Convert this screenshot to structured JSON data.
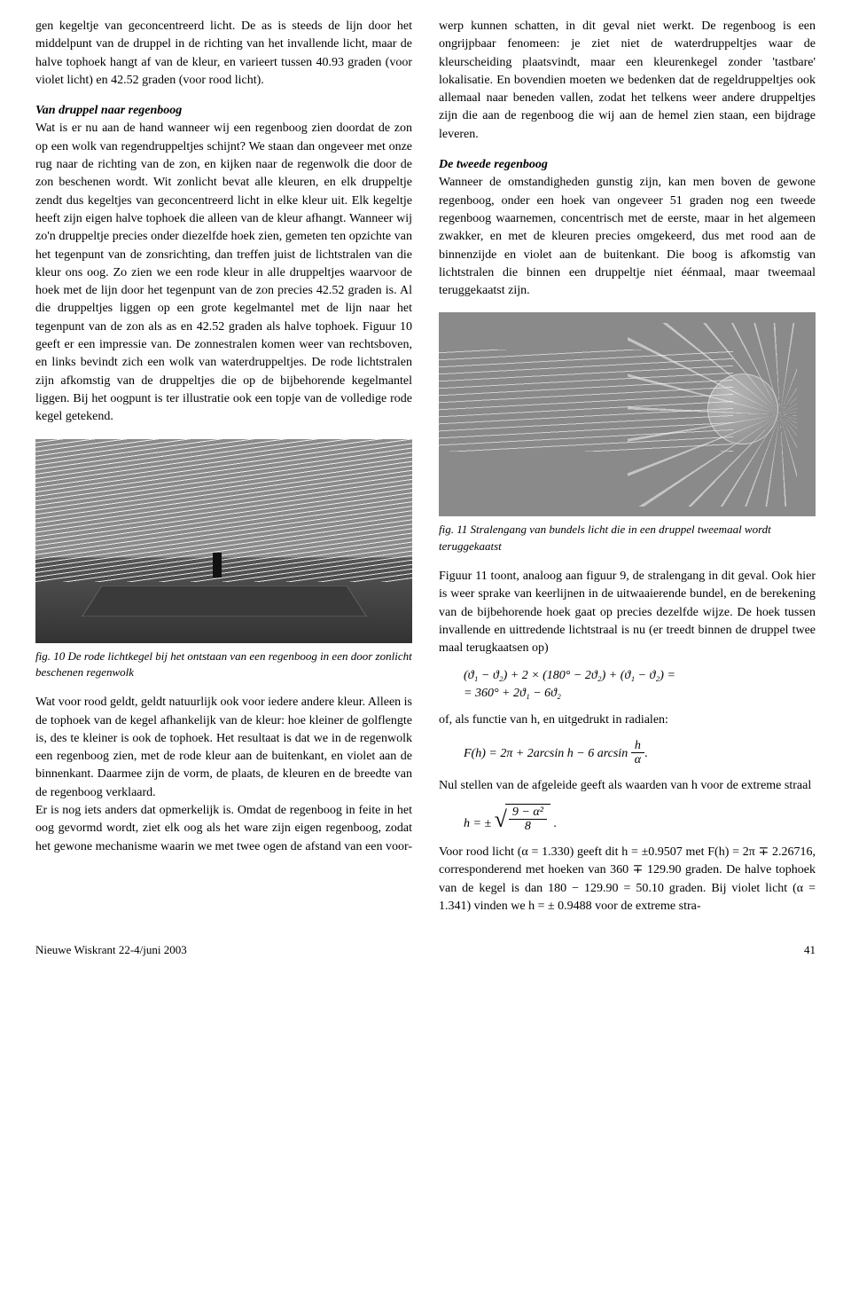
{
  "left": {
    "p1": "gen kegeltje van geconcentreerd licht. De as is steeds de lijn door het middelpunt van de druppel in de richting van het invallende licht, maar de halve tophoek hangt af van de kleur, en varieert tussen 40.93 graden (voor violet licht) en 42.52 graden (voor rood licht).",
    "h1": "Van druppel naar regenboog",
    "p2": "Wat is er nu aan de hand wanneer wij een regenboog zien doordat de zon op een wolk van regendruppeltjes schijnt? We staan dan ongeveer met onze rug naar de richting van de zon, en kijken naar de regenwolk die door de zon beschenen wordt. Wit zonlicht bevat alle kleuren, en elk druppeltje zendt dus kegeltjes van geconcentreerd licht in elke kleur uit. Elk kegeltje heeft zijn eigen halve tophoek die alleen van de kleur afhangt. Wanneer wij zo'n druppeltje precies onder diezelfde hoek zien, gemeten ten opzichte van het tegenpunt van de zonsrichting, dan treffen juist de lichtstralen van die kleur ons oog. Zo zien we een rode kleur in alle druppeltjes waarvoor de hoek met de lijn door het tegenpunt van de zon precies 42.52 graden is. Al die druppeltjes liggen op een grote kegelmantel met de lijn naar het tegenpunt van de zon als as en 42.52 graden als halve tophoek. Figuur 10 geeft er een impressie van. De zonnestralen komen weer van rechtsboven, en links bevindt zich een wolk van waterdruppeltjes. De rode lichtstralen zijn afkomstig van de druppeltjes die op de bijbehorende kegelmantel liggen. Bij het oogpunt is ter illustratie ook een topje van de volledige rode kegel getekend.",
    "cap10": "fig. 10  De rode lichtkegel bij het ontstaan van een regenboog in een door zonlicht beschenen regenwolk",
    "p3": "Wat voor rood geldt, geldt natuurlijk ook voor iedere andere kleur. Alleen is de tophoek van de kegel afhankelijk van de kleur: hoe kleiner de golflengte is, des te kleiner is ook de tophoek. Het resultaat is dat we in de regenwolk een regenboog zien, met de rode kleur aan de buitenkant, en violet aan de binnenkant. Daarmee zijn de vorm, de plaats, de kleuren en de breedte van de regenboog verklaard.",
    "p4": "Er is nog iets anders dat opmerkelijk is. Omdat de regenboog in feite in het oog gevormd wordt, ziet elk oog als het ware zijn eigen regenboog, zodat het gewone mechanisme waarin we met twee ogen de afstand van een voor-"
  },
  "right": {
    "p1": "werp kunnen schatten, in dit geval niet werkt. De regenboog is een ongrijpbaar fenomeen: je ziet niet de waterdruppeltjes waar de kleurscheiding plaatsvindt, maar een kleurenkegel zonder 'tastbare' lokalisatie. En bovendien moeten we bedenken dat de regeldruppeltjes ook allemaal naar beneden vallen, zodat het telkens weer andere druppeltjes zijn die aan de regenboog die wij aan de hemel zien staan, een bijdrage leveren.",
    "h2": "De tweede regenboog",
    "p2": "Wanneer de omstandigheden gunstig zijn, kan men boven de gewone regenboog, onder een hoek van ongeveer 51 graden nog een tweede regenboog waarnemen, concentrisch met de eerste, maar in het algemeen zwakker, en met de kleuren precies omgekeerd, dus met rood aan de binnenzijde en violet aan de buitenkant. Die boog is afkomstig van lichtstralen die binnen een druppeltje niet éénmaal, maar tweemaal teruggekaatst zijn.",
    "cap11": "fig. 11  Stralengang van bundels licht die in een druppel tweemaal wordt teruggekaatst",
    "p3": "Figuur 11 toont, analoog aan figuur 9, de stralengang in dit geval. Ook hier is weer sprake van keerlijnen in de uitwaaierende bundel, en de berekening van de bijbehorende hoek gaat op precies dezelfde wijze. De hoek tussen invallende en uittredende lichtstraal is nu (er treedt binnen de druppel twee maal terugkaatsen op)",
    "eq1a": "(ϑ₁ − ϑ₂) + 2 × (180° − 2ϑ₂) + (ϑ₁ − ϑ₂) =",
    "eq1b": "= 360° + 2ϑ₁ − 6ϑ₂",
    "p4": "of, als functie van h, en uitgedrukt in radialen:",
    "eq2_lhs": "F(h) = 2π + 2arcsin h − 6 arcsin",
    "eq2_num": "h",
    "eq2_den": "α",
    "p5": "Nul stellen van de afgeleide geeft als waarden van h voor de extreme straal",
    "eq3_lhs": "h = ±",
    "eq3_num": "9 − α²",
    "eq3_den": "8",
    "p6": "Voor rood licht (α = 1.330) geeft dit h = ±0.9507 met F(h) = 2π ∓ 2.26716, corresponderend met hoeken van 360 ∓ 129.90 graden. De halve tophoek van de kegel is dan 180 − 129.90 = 50.10 graden. Bij violet licht (α = 1.341) vinden we h = ± 0.9488 voor de extreme stra-"
  },
  "footer": {
    "issue": "Nieuwe Wiskrant 22-4/juni 2003",
    "page": "41"
  }
}
